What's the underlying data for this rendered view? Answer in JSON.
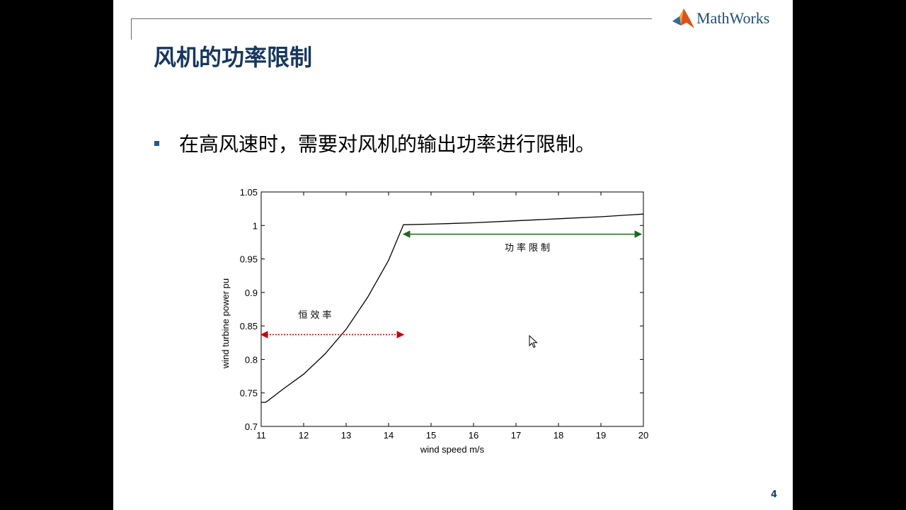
{
  "header": {
    "logo_text": "MathWorks",
    "logo_icon": "matlab-membrane-icon"
  },
  "slide": {
    "title": "风机的功率限制",
    "bullet": "在高风速时，需要对风机的输出功率进行限制。",
    "page_number": "4"
  },
  "colors": {
    "title": "#17375e",
    "bullet_marker": "#1f5a8a",
    "arrow_left": "#cc0000",
    "arrow_right": "#1a6b1a",
    "line": "#000000"
  },
  "chart_data": {
    "type": "line",
    "title": "",
    "xlabel": "wind speed m/s",
    "ylabel": "wind turbine power pu",
    "xlim": [
      11,
      20
    ],
    "ylim": [
      0.7,
      1.05
    ],
    "xticks": [
      11,
      12,
      13,
      14,
      15,
      16,
      17,
      18,
      19,
      20
    ],
    "yticks": [
      0.7,
      0.75,
      0.8,
      0.85,
      0.9,
      0.95,
      1,
      1.05
    ],
    "ytick_labels": [
      "0.7",
      "0.75",
      "0.8",
      "0.85",
      "0.9",
      "0.95",
      "1",
      "1.05"
    ],
    "grid": false,
    "series": [
      {
        "x": [
          11,
          11.1,
          11.15,
          11.5,
          12,
          12.5,
          13,
          13.5,
          14,
          14.35,
          15,
          16,
          17,
          18,
          19,
          20
        ],
        "y": [
          0.736,
          0.736,
          0.738,
          0.755,
          0.778,
          0.808,
          0.845,
          0.892,
          0.948,
          1.001,
          1.002,
          1.004,
          1.007,
          1.01,
          1.013,
          1.017
        ]
      }
    ],
    "annotations": [
      {
        "text": "恒效率",
        "x": 12.3,
        "y": 0.862,
        "arrow": {
          "x1": 11.0,
          "x2": 14.35,
          "y": 0.837,
          "color": "#cc0000",
          "style": "dotted"
        }
      },
      {
        "text": "功率限制",
        "x": 17.3,
        "y": 0.962,
        "arrow": {
          "x1": 14.35,
          "x2": 19.95,
          "y": 0.987,
          "color": "#1a6b1a",
          "style": "solid"
        }
      }
    ]
  }
}
